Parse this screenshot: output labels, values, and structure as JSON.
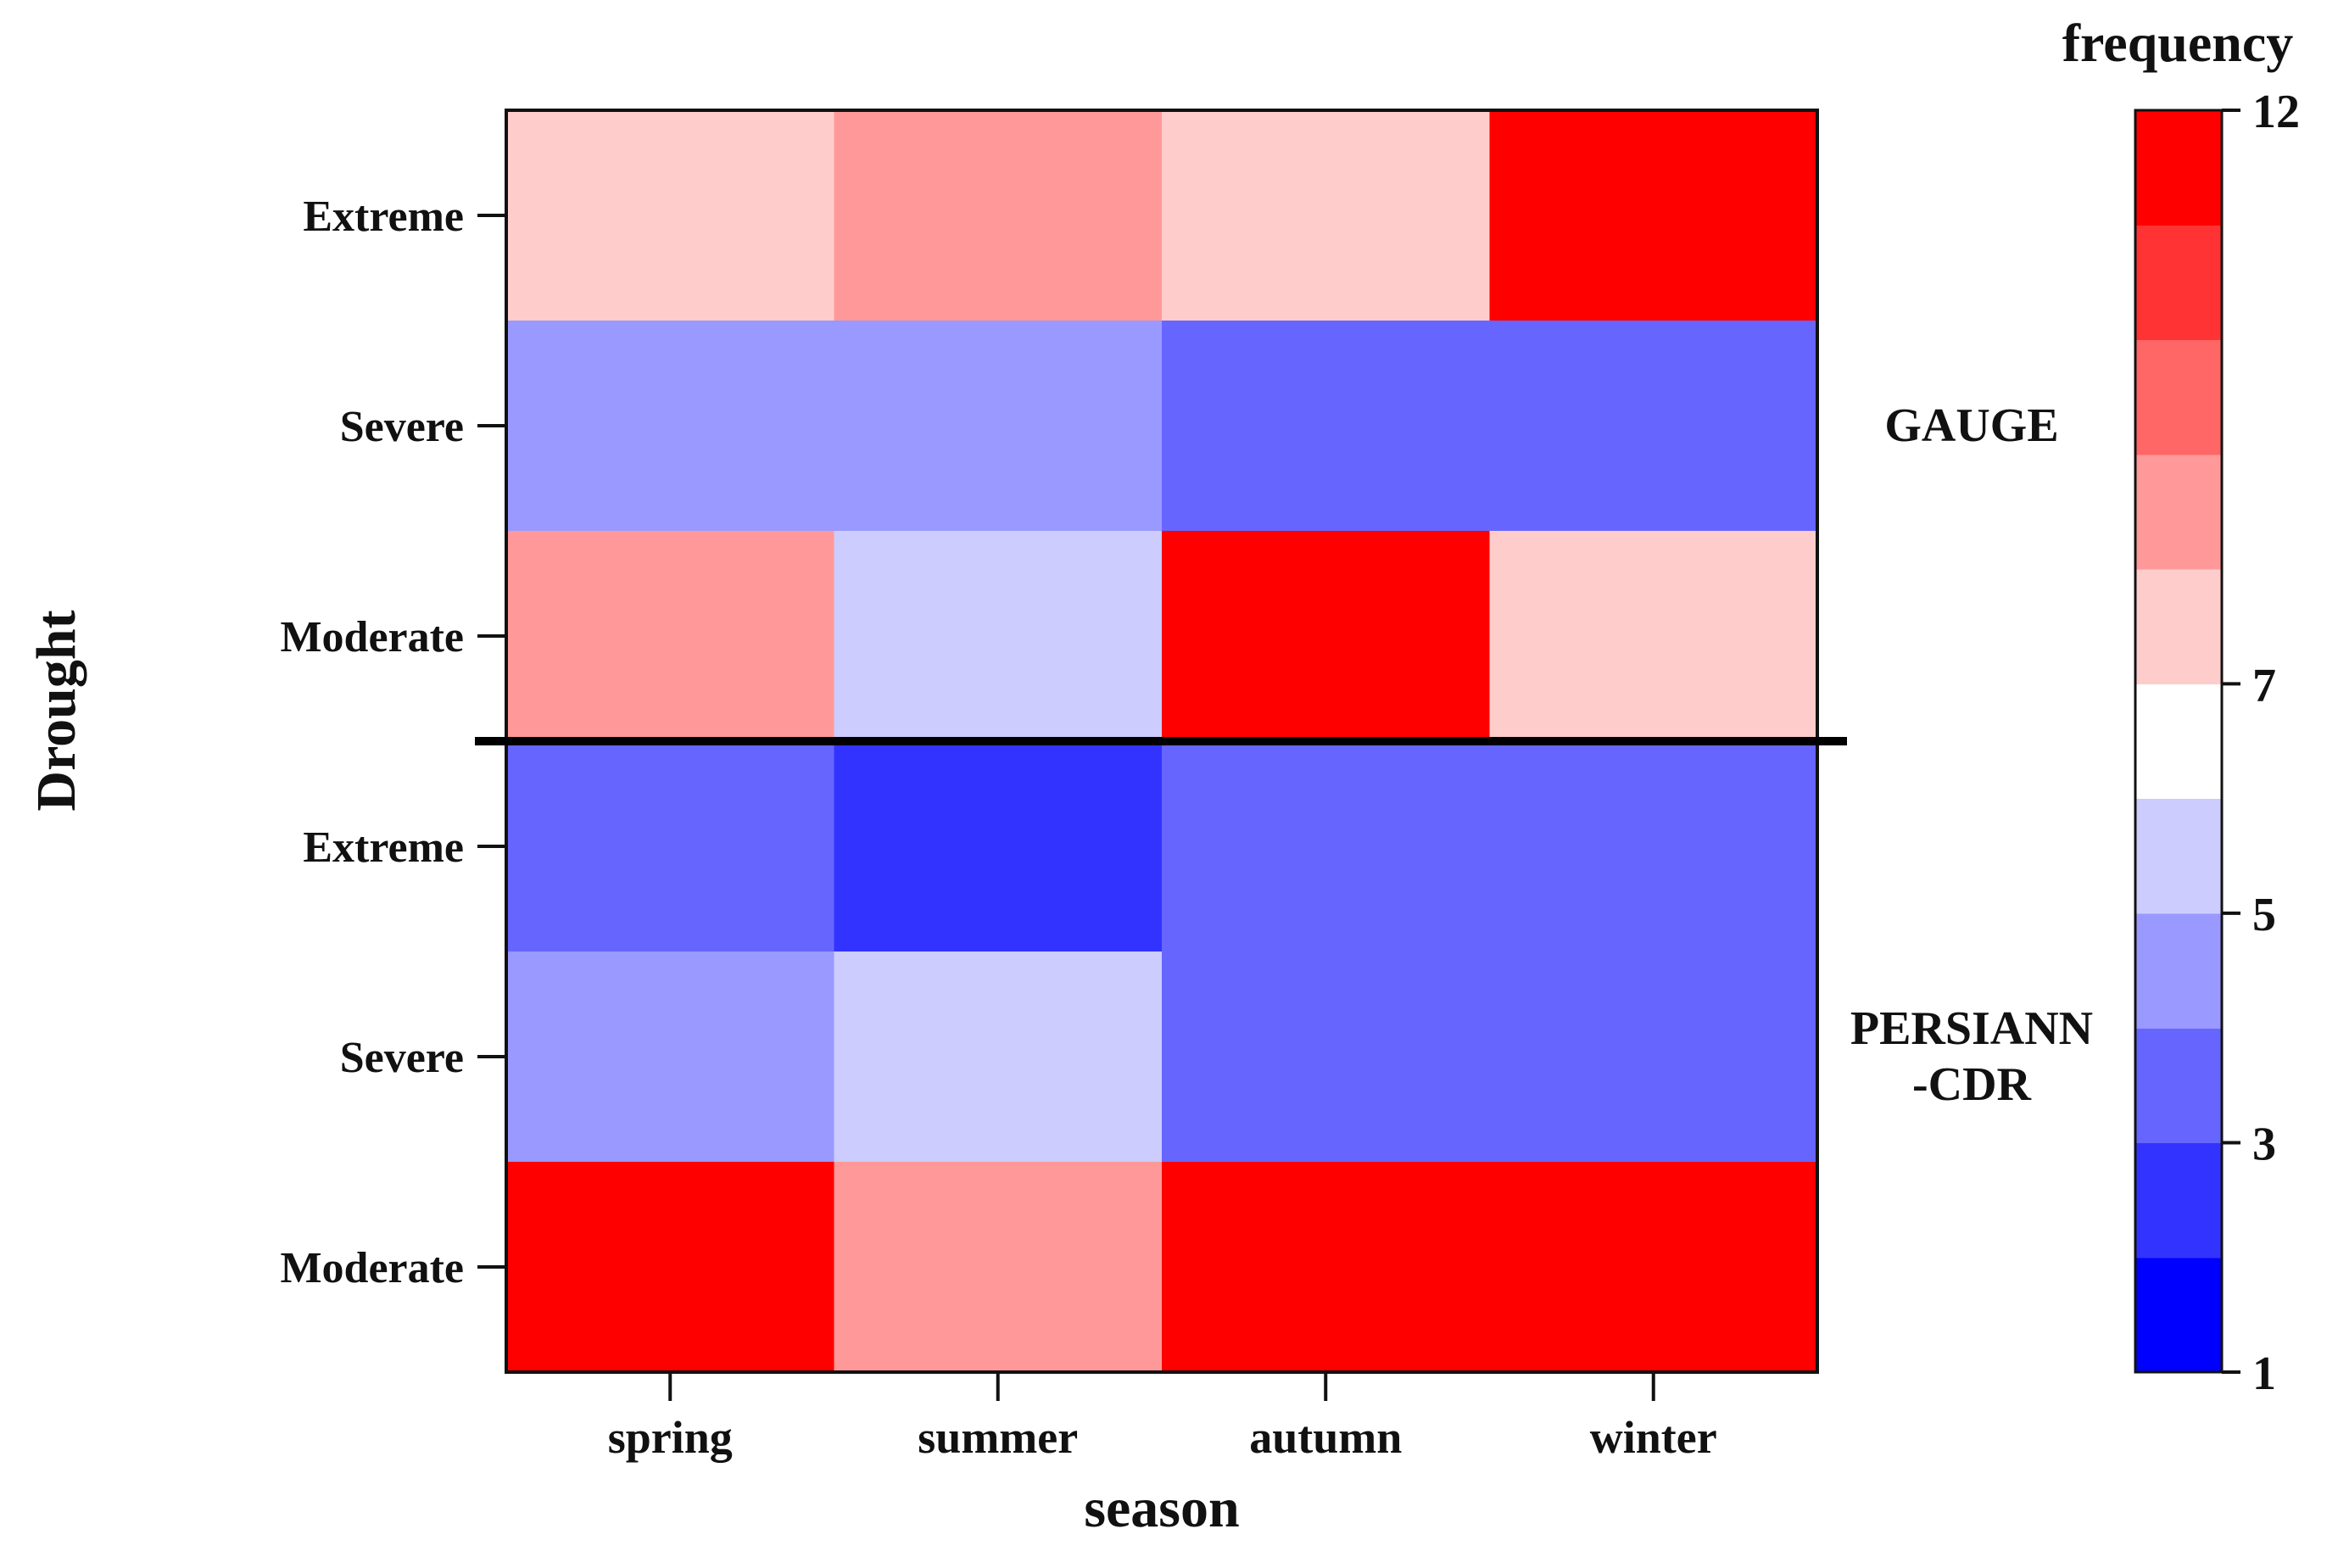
{
  "chart_data": {
    "type": "heatmap",
    "xlabel": "season",
    "ylabel": "Drought",
    "categories": [
      "spring",
      "summer",
      "autumn",
      "winter"
    ],
    "groups": [
      {
        "name": "GAUGE",
        "label_lines": [
          "GAUGE"
        ],
        "rows": [
          "Extreme",
          "Severe",
          "Moderate"
        ],
        "values": [
          [
            7,
            8,
            7,
            11
          ],
          [
            4,
            4,
            3,
            3
          ],
          [
            8,
            5,
            11,
            7
          ]
        ]
      },
      {
        "name": "PERSIANN-CDR",
        "label_lines": [
          "PERSIANN",
          "-CDR"
        ],
        "rows": [
          "Extreme",
          "Severe",
          "Moderate"
        ],
        "values": [
          [
            3,
            2,
            3,
            3
          ],
          [
            4,
            5,
            3,
            3
          ],
          [
            12,
            8,
            12,
            12
          ]
        ]
      }
    ],
    "colorbar": {
      "title": "frequency",
      "min": 1,
      "max": 12,
      "ticks": [
        1,
        3,
        5,
        7,
        12
      ],
      "colors": [
        "#0000ff",
        "#3333ff",
        "#6666ff",
        "#9999ff",
        "#ccccff",
        "#ffffff",
        "#ffcccc",
        "#ff9999",
        "#ff6666",
        "#ff3333",
        "#ff0000"
      ]
    },
    "grid": false
  }
}
